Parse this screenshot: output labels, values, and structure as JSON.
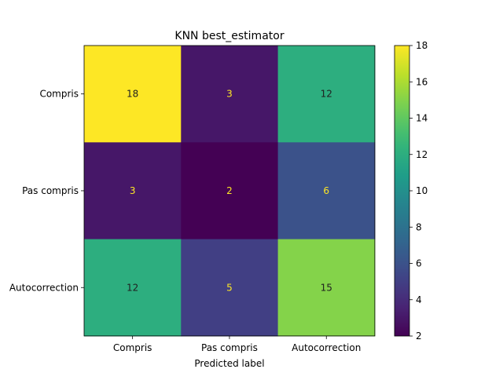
{
  "chart_data": {
    "type": "heatmap",
    "title": "KNN best_estimator",
    "xlabel": "Predicted label",
    "ylabel": "",
    "x_categories": [
      "Compris",
      "Pas compris",
      "Autocorrection"
    ],
    "y_categories": [
      "Compris",
      "Pas compris",
      "Autocorrection"
    ],
    "values": [
      [
        18,
        3,
        12
      ],
      [
        3,
        2,
        6
      ],
      [
        12,
        5,
        15
      ]
    ],
    "colormap": "viridis",
    "color_range": [
      2,
      18
    ],
    "colorbar_ticks": [
      2,
      4,
      6,
      8,
      10,
      12,
      14,
      16,
      18
    ],
    "label_colors": {
      "on_dark": "#fde725",
      "on_light": "#1f1f1f"
    },
    "grid": false
  }
}
